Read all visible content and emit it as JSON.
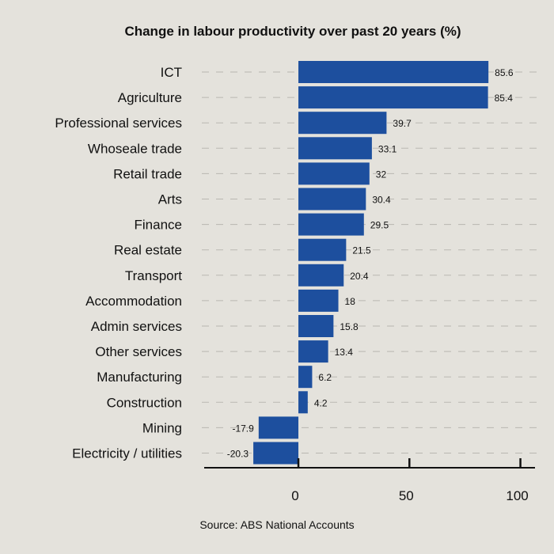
{
  "chart_data": {
    "type": "bar",
    "orientation": "horizontal",
    "title": "Change in labour productivity over past 20 years (%)",
    "source": "Source: ABS National Accounts",
    "categories": [
      "ICT",
      "Agriculture",
      "Professional services",
      "Whoseale trade",
      "Retail trade",
      "Arts",
      "Finance",
      "Real estate",
      "Transport",
      "Accommodation",
      "Admin services",
      "Other services",
      "Manufacturing",
      "Construction",
      "Mining",
      "Electricity / utilities"
    ],
    "values": [
      85.6,
      85.4,
      39.7,
      33.1,
      32,
      30.4,
      29.5,
      21.5,
      20.4,
      18,
      15.8,
      13.4,
      6.2,
      4.2,
      -17.9,
      -20.3
    ],
    "data_labels": [
      "85.6",
      "85.4",
      "39.7",
      "33.1",
      "32",
      "30.4",
      "29.5",
      "21.5",
      "20.4",
      "18",
      "15.8",
      "13.4",
      "6.2",
      "4.2",
      "-17.9",
      "-20.3"
    ],
    "x_ticks": [
      0,
      50,
      100
    ],
    "x_tick_labels": [
      "0",
      "50",
      "100"
    ],
    "xlim": [
      -46,
      108
    ],
    "xlabel": "",
    "ylabel": "",
    "bar_color": "#1d4f9e",
    "grid": "dashed horizontal"
  }
}
